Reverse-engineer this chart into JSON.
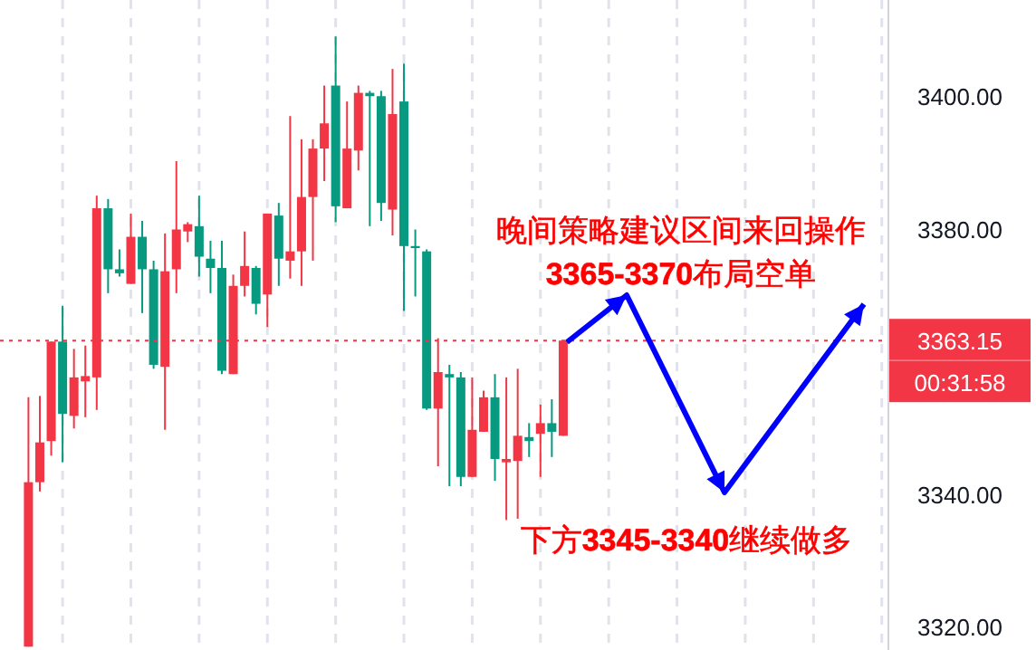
{
  "chart_data": {
    "type": "candlestick",
    "categories": [
      null,
      null,
      null,
      null,
      null,
      null,
      null,
      null,
      null,
      null,
      null,
      null,
      null,
      null,
      null,
      null,
      null,
      null,
      null,
      null,
      null,
      null,
      null,
      null,
      null,
      null,
      null,
      null,
      null,
      null,
      null,
      null,
      null,
      null,
      null,
      null,
      null,
      null,
      null,
      null,
      null,
      null,
      null,
      null,
      null,
      null,
      null,
      null,
      null,
      null,
      null,
      null,
      null,
      null,
      null,
      null,
      null,
      null,
      null,
      null,
      null,
      null,
      null,
      null,
      null,
      null,
      null,
      null,
      null,
      null,
      null,
      null,
      null,
      null,
      null,
      null,
      null,
      null
    ],
    "ohlc": [
      null,
      null,
      [
        3317,
        3354.6,
        3317,
        3341.8
      ],
      [
        3341.8,
        3354.8,
        3340.4,
        3347.8
      ],
      [
        3348,
        3363,
        3345.8,
        3363
      ],
      [
        3363,
        3368.4,
        3344.8,
        3352.1
      ],
      [
        3351.8,
        3361.9,
        3349.9,
        3357.6
      ],
      [
        3357,
        3362.4,
        3351.6,
        3357.8
      ],
      [
        3357.6,
        3385,
        3352.7,
        3383.1
      ],
      [
        3383.1,
        3384.5,
        3370.3,
        3373.9
      ],
      [
        3373.9,
        3376.9,
        3372.8,
        3373.3
      ],
      [
        3371.7,
        3382.3,
        3371.7,
        3378.8
      ],
      [
        3378.8,
        3381.2,
        3367.3,
        3373.9
      ],
      [
        3373.9,
        3375.2,
        3358.9,
        3359.5
      ],
      [
        3359.2,
        3379.3,
        3349.7,
        3373.6
      ],
      [
        3373.9,
        3390.2,
        3370.3,
        3379.9
      ],
      [
        3379.6,
        3381,
        3378,
        3380.7
      ],
      [
        3380.4,
        3385,
        3372.8,
        3375.8
      ],
      [
        3375.5,
        3378.2,
        3370.3,
        3374.1
      ],
      [
        3374.1,
        3378.2,
        3358.1,
        3358.6
      ],
      [
        3358.1,
        3373.1,
        3358.1,
        3371.4
      ],
      [
        3371.4,
        3379.6,
        3369.8,
        3374.4
      ],
      [
        3374.1,
        3374.4,
        3367.1,
        3368.7
      ],
      [
        3370.1,
        3382.3,
        3365.2,
        3382.3
      ],
      [
        3382,
        3383.9,
        3371.4,
        3375.5
      ],
      [
        3375.2,
        3397,
        3372.5,
        3376.6
      ],
      [
        3376.6,
        3393.5,
        3371.4,
        3384.8
      ],
      [
        3384.8,
        3393.5,
        3375.2,
        3392.1
      ],
      [
        3392.1,
        3401.6,
        3387.2,
        3395.9
      ],
      [
        3401.6,
        3409,
        3381,
        3383.4
      ],
      [
        3383.1,
        3399.2,
        3383.1,
        3392.1
      ],
      [
        3391.8,
        3401.6,
        3388.8,
        3400.5
      ],
      [
        3400.5,
        3400.8,
        3380.4,
        3400
      ],
      [
        3400,
        3400.8,
        3381.2,
        3383.9
      ],
      [
        3382.9,
        3404.1,
        3379,
        3397.3
      ],
      [
        3399.2,
        3404.9,
        3367.6,
        3377.4
      ],
      [
        3377.4,
        3379.9,
        3369.8,
        3377.1
      ],
      [
        3376.6,
        3376.9,
        3352.7,
        3352.9
      ],
      [
        3352.9,
        3363.5,
        3344.2,
        3358.4
      ],
      [
        3358.1,
        3359.5,
        3341.2,
        3357.6
      ],
      [
        3357.6,
        3358.4,
        3341.2,
        3342.6
      ],
      [
        3342.6,
        3357.6,
        3342.6,
        3349.7
      ],
      [
        3349.4,
        3355.6,
        3349.4,
        3354.6
      ],
      [
        3354.6,
        3358.1,
        3342,
        3345.3
      ],
      [
        3344.8,
        3357.6,
        3336.1,
        3345.3
      ],
      [
        3345,
        3358.9,
        3336.3,
        3348.8
      ],
      [
        3348.6,
        3350.7,
        3345.6,
        3348
      ],
      [
        3349.1,
        3353.5,
        3342.6,
        3350.7
      ],
      [
        3350.7,
        3354.3,
        3345.6,
        3349.4
      ],
      [
        3348.8,
        3363.15,
        3348.8,
        3363.15
      ],
      null,
      null,
      null,
      null,
      null,
      null,
      null,
      null,
      null,
      null,
      null,
      null,
      null,
      null,
      null,
      null,
      null,
      null,
      null,
      null,
      null,
      null,
      null,
      null,
      null,
      null,
      null,
      null
    ],
    "colors": [
      null,
      null,
      "#f23645",
      "#f23645",
      "#f23645",
      "#089981",
      "#f23645",
      "#f23645",
      "#f23645",
      "#089981",
      "#089981",
      "#f23645",
      "#089981",
      "#089981",
      "#f23645",
      "#f23645",
      "#f23645",
      "#089981",
      "#089981",
      "#089981",
      "#f23645",
      "#f23645",
      "#089981",
      "#f23645",
      "#089981",
      "#f23645",
      "#f23645",
      "#f23645",
      "#f23645",
      "#089981",
      "#f23645",
      "#f23645",
      "#089981",
      "#089981",
      "#f23645",
      "#089981",
      "#089981",
      "#089981",
      "#f23645",
      "#089981",
      "#089981",
      "#f23645",
      "#f23645",
      "#089981",
      "#f23645",
      "#f23645",
      "#089981",
      "#f23645",
      "#089981",
      "#f23645",
      null,
      null,
      null,
      null,
      null,
      null,
      null,
      null,
      null,
      null,
      null,
      null,
      null,
      null,
      null,
      null,
      null,
      null,
      null,
      null,
      null,
      null,
      null,
      null,
      null,
      null,
      null,
      null
    ],
    "ylim": [
      3316.5,
      3414.5
    ],
    "yticks": [
      {
        "value": 3320,
        "label": "3320.00"
      },
      {
        "value": 3340,
        "label": "3340.00"
      },
      {
        "value": 3380,
        "label": "3380.00"
      },
      {
        "value": 3400,
        "label": "3400.00"
      }
    ],
    "grid": "x",
    "tick_labels": "y",
    "ref_lines": [
      {
        "axis": "y",
        "value": 3363.15,
        "label": "3363.15",
        "color": "#f23645",
        "line_style": "dotted"
      }
    ],
    "annotations": [
      "00:31:58",
      "晚间策略建议区间来回操作",
      "**3365-3370**布局空单",
      "下方**3345-3340**继续做多"
    ]
  }
}
